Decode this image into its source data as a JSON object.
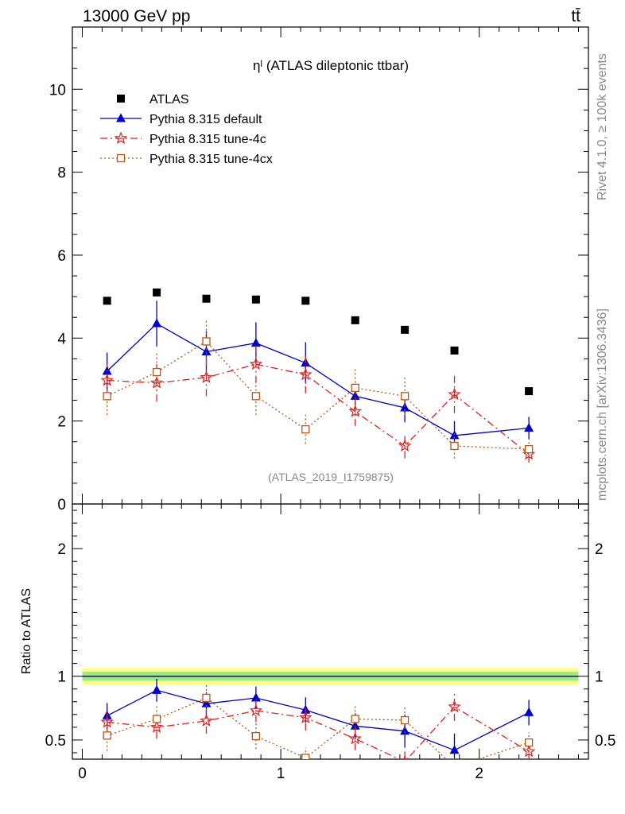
{
  "header": {
    "left": "13000 GeV pp",
    "right": "tt̄"
  },
  "side_labels": {
    "top": "Rivet 4.1.0, ≥ 100k events",
    "bottom": "mcplots.cern.ch [arXiv:1306.3436]"
  },
  "chart_data": [
    {
      "type": "scatter",
      "title": "ηˡ (ATLAS dileptonic ttbar)",
      "watermark": "(ATLAS_2019_I1759875)",
      "xlim": [
        -0.05,
        2.55
      ],
      "ylim": [
        0,
        11.5
      ],
      "yticks": [
        0,
        2,
        4,
        6,
        8,
        10
      ],
      "ytick_labels": [
        "0",
        "2",
        "4",
        "6",
        "8",
        "10"
      ],
      "legend_position": "top-left",
      "x": [
        0.125,
        0.375,
        0.625,
        0.875,
        1.125,
        1.375,
        1.625,
        1.875,
        2.25
      ],
      "series": [
        {
          "name": "ATLAS",
          "color": "#000000",
          "marker": "square-filled",
          "values": [
            4.9,
            5.1,
            4.95,
            4.93,
            4.9,
            4.43,
            4.2,
            3.7,
            2.72
          ],
          "errors": [
            0.06,
            0.06,
            0.06,
            0.06,
            0.06,
            0.06,
            0.06,
            0.06,
            0.06
          ]
        },
        {
          "name": "Pythia 8.315 default",
          "color": "#0000cc",
          "marker": "triangle-filled",
          "line": "solid",
          "values": [
            3.2,
            4.35,
            3.67,
            3.88,
            3.4,
            2.6,
            2.32,
            1.65,
            1.83
          ],
          "errors": [
            0.45,
            0.55,
            0.5,
            0.5,
            0.5,
            0.3,
            0.35,
            0.35,
            0.27
          ]
        },
        {
          "name": "Pythia 8.315 tune-4c",
          "color": "#dd2222",
          "marker": "star-open",
          "line": "dashdot",
          "values": [
            2.98,
            2.92,
            3.05,
            3.37,
            3.12,
            2.23,
            1.4,
            2.64,
            1.2
          ],
          "errors": [
            0.4,
            0.45,
            0.45,
            0.45,
            0.45,
            0.35,
            0.3,
            0.45,
            0.2
          ]
        },
        {
          "name": "Pythia 8.315 tune-4cx",
          "color": "#bb5511",
          "marker": "square-open",
          "line": "dotted",
          "values": [
            2.6,
            3.18,
            3.92,
            2.6,
            1.8,
            2.8,
            2.6,
            1.4,
            1.32
          ],
          "errors": [
            0.45,
            0.45,
            0.5,
            0.45,
            0.35,
            0.45,
            0.45,
            0.3,
            0.25
          ]
        }
      ]
    },
    {
      "type": "scatter",
      "ylabel": "Ratio to ATLAS",
      "xlim": [
        -0.05,
        2.55
      ],
      "ylim": [
        0.35,
        2.35
      ],
      "xticks": [
        0,
        1,
        2
      ],
      "xtick_labels": [
        "0",
        "1",
        "2"
      ],
      "yticks": [
        0.5,
        1,
        2
      ],
      "ytick_labels": [
        "0.5",
        "1",
        "2"
      ],
      "band_inner": 0.035,
      "band_outer": 0.065,
      "x": [
        0.125,
        0.375,
        0.625,
        0.875,
        1.125,
        1.375,
        1.625,
        1.875,
        2.25
      ],
      "series": [
        {
          "name": "Pythia 8.315 default",
          "color": "#0000cc",
          "marker": "triangle-filled",
          "line": "solid",
          "values": [
            0.69,
            0.89,
            0.785,
            0.83,
            0.735,
            0.61,
            0.57,
            0.42,
            0.715
          ],
          "errors": [
            0.1,
            0.09,
            0.09,
            0.09,
            0.1,
            0.1,
            0.13,
            0.13,
            0.1
          ]
        },
        {
          "name": "Pythia 8.315 tune-4c",
          "color": "#dd2222",
          "marker": "star-open",
          "line": "dashdot",
          "values": [
            0.64,
            0.6,
            0.65,
            0.73,
            0.675,
            0.51,
            0.33,
            0.76,
            0.41
          ],
          "errors": [
            0.1,
            0.09,
            0.1,
            0.09,
            0.1,
            0.09,
            0.08,
            0.11,
            0.08
          ]
        },
        {
          "name": "Pythia 8.315 tune-4cx",
          "color": "#bb5511",
          "marker": "square-open",
          "line": "dotted",
          "values": [
            0.535,
            0.665,
            0.83,
            0.53,
            0.36,
            0.665,
            0.655,
            0.29,
            0.48
          ],
          "errors": [
            0.12,
            0.1,
            0.1,
            0.1,
            0.08,
            0.1,
            0.1,
            0.07,
            0.08
          ]
        }
      ]
    }
  ]
}
